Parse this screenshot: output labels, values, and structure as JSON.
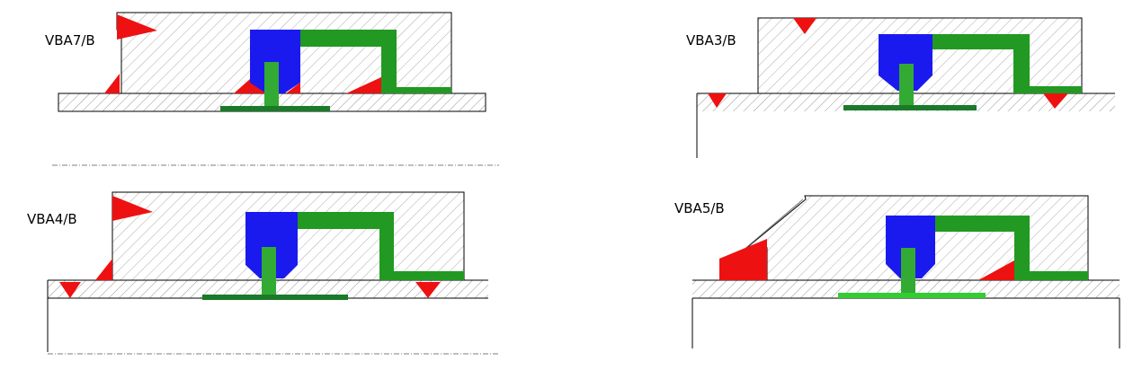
{
  "colors": {
    "background": "#ffffff",
    "outline": "#000000",
    "hatch": "#777777",
    "weld": "#ee1111",
    "valve_body": "#1a1aee",
    "pipe": "#229922",
    "pipe_dark": "#1a7a2a",
    "pipe_light": "#33cc33"
  },
  "diagrams": [
    {
      "id": "vba7",
      "label": "VBA7/B"
    },
    {
      "id": "vba3",
      "label": "VBA3/B"
    },
    {
      "id": "vba4",
      "label": "VBA4/B"
    },
    {
      "id": "vba5",
      "label": "VBA5/B"
    }
  ]
}
